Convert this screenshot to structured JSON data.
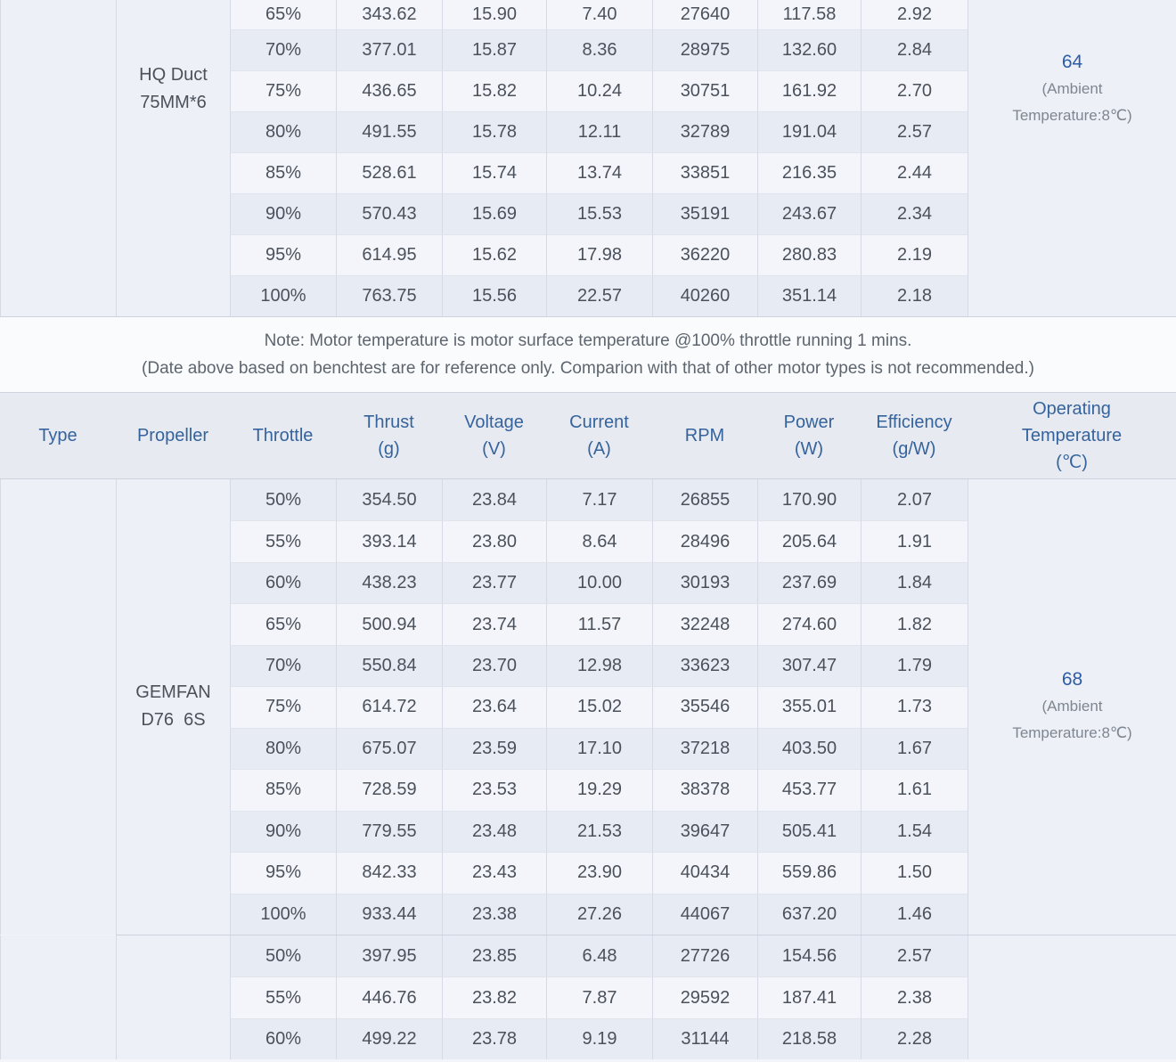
{
  "title": "Motor benchtest data table",
  "columns": [
    {
      "key": "type",
      "lines": [
        "Type"
      ]
    },
    {
      "key": "propeller",
      "lines": [
        "Propeller"
      ]
    },
    {
      "key": "throttle",
      "lines": [
        "Throttle"
      ]
    },
    {
      "key": "thrust",
      "lines": [
        "Thrust",
        "(g)"
      ]
    },
    {
      "key": "voltage",
      "lines": [
        "Voltage",
        "(V)"
      ]
    },
    {
      "key": "current",
      "lines": [
        "Current",
        "(A)"
      ]
    },
    {
      "key": "rpm",
      "lines": [
        "RPM"
      ]
    },
    {
      "key": "power",
      "lines": [
        "Power",
        "(W)"
      ]
    },
    {
      "key": "efficiency",
      "lines": [
        "Efficiency",
        "(g/W)"
      ]
    },
    {
      "key": "temperature",
      "lines": [
        "Operating",
        "Temperature",
        "(℃)"
      ]
    }
  ],
  "note": {
    "line1": "Note: Motor temperature is motor surface temperature @100% throttle running 1 mins.",
    "line2": "(Date above based on benchtest are for reference only. Comparion with that of other motor types is not recommended.)"
  },
  "sections": [
    {
      "id": "hq-duct",
      "propeller_lines": [
        "HQ Duct",
        "75MM*6"
      ],
      "temperature": {
        "value": "64",
        "sub1": "(Ambient",
        "sub2": "Temperature:8℃)"
      },
      "rows": [
        [
          "65%",
          "343.62",
          "15.90",
          "7.40",
          "27640",
          "117.58",
          "2.92"
        ],
        [
          "70%",
          "377.01",
          "15.87",
          "8.36",
          "28975",
          "132.60",
          "2.84"
        ],
        [
          "75%",
          "436.65",
          "15.82",
          "10.24",
          "30751",
          "161.92",
          "2.70"
        ],
        [
          "80%",
          "491.55",
          "15.78",
          "12.11",
          "32789",
          "191.04",
          "2.57"
        ],
        [
          "85%",
          "528.61",
          "15.74",
          "13.74",
          "33851",
          "216.35",
          "2.44"
        ],
        [
          "90%",
          "570.43",
          "15.69",
          "15.53",
          "35191",
          "243.67",
          "2.34"
        ],
        [
          "95%",
          "614.95",
          "15.62",
          "17.98",
          "36220",
          "280.83",
          "2.19"
        ],
        [
          "100%",
          "763.75",
          "15.56",
          "22.57",
          "40260",
          "351.14",
          "2.18"
        ]
      ]
    },
    {
      "id": "gemfan",
      "propeller_lines": [
        "GEMFAN",
        "D76  6S"
      ],
      "temperature": {
        "value": "68",
        "sub1": "(Ambient",
        "sub2": "Temperature:8℃)"
      },
      "rows": [
        [
          "50%",
          "354.50",
          "23.84",
          "7.17",
          "26855",
          "170.90",
          "2.07"
        ],
        [
          "55%",
          "393.14",
          "23.80",
          "8.64",
          "28496",
          "205.64",
          "1.91"
        ],
        [
          "60%",
          "438.23",
          "23.77",
          "10.00",
          "30193",
          "237.69",
          "1.84"
        ],
        [
          "65%",
          "500.94",
          "23.74",
          "11.57",
          "32248",
          "274.60",
          "1.82"
        ],
        [
          "70%",
          "550.84",
          "23.70",
          "12.98",
          "33623",
          "307.47",
          "1.79"
        ],
        [
          "75%",
          "614.72",
          "23.64",
          "15.02",
          "35546",
          "355.01",
          "1.73"
        ],
        [
          "80%",
          "675.07",
          "23.59",
          "17.10",
          "37218",
          "403.50",
          "1.67"
        ],
        [
          "85%",
          "728.59",
          "23.53",
          "19.29",
          "38378",
          "453.77",
          "1.61"
        ],
        [
          "90%",
          "779.55",
          "23.48",
          "21.53",
          "39647",
          "505.41",
          "1.54"
        ],
        [
          "95%",
          "842.33",
          "23.43",
          "23.90",
          "40434",
          "559.86",
          "1.50"
        ],
        [
          "100%",
          "933.44",
          "23.38",
          "27.26",
          "44067",
          "637.20",
          "1.46"
        ]
      ]
    },
    {
      "id": "third",
      "propeller_lines": [],
      "temperature": null,
      "rows": [
        [
          "50%",
          "397.95",
          "23.85",
          "6.48",
          "27726",
          "154.56",
          "2.57"
        ],
        [
          "55%",
          "446.76",
          "23.82",
          "7.87",
          "29592",
          "187.41",
          "2.38"
        ],
        [
          "60%",
          "499.22",
          "23.78",
          "9.19",
          "31144",
          "218.58",
          "2.28"
        ]
      ]
    }
  ],
  "colors": {
    "header_text": "#35639c",
    "data_text": "#4b515b",
    "temperature_value": "#2d5ca7",
    "ambient_text": "#7e8691",
    "note_text": "#5d656f",
    "stripe_dark": "#e7ebf3",
    "stripe_light": "#f3f5fa"
  }
}
